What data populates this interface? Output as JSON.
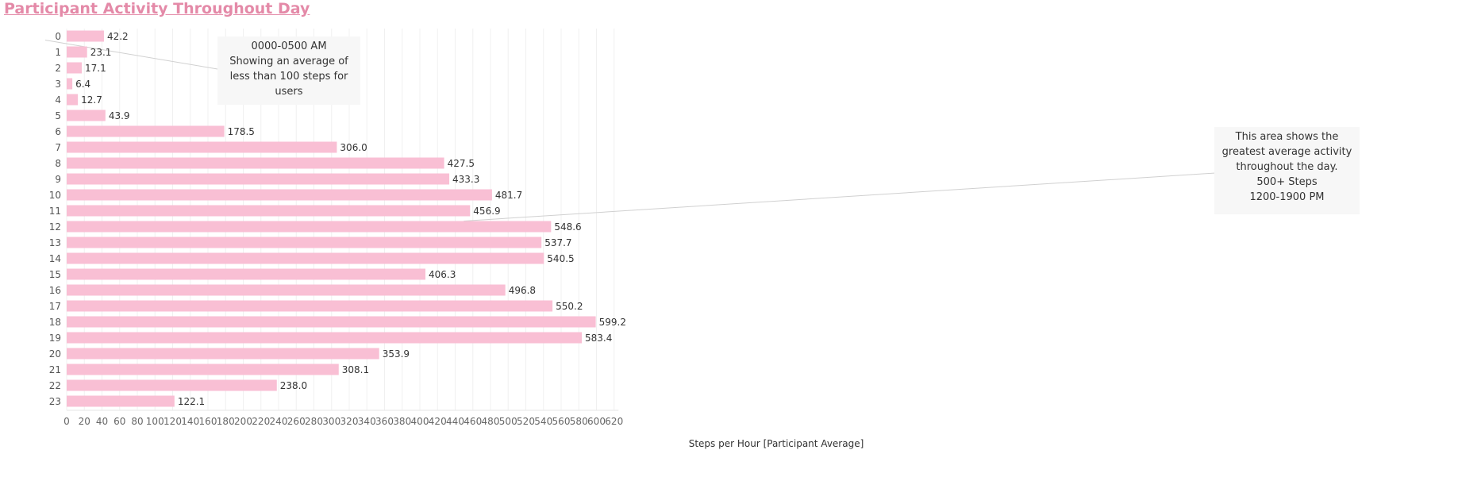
{
  "chart_data": {
    "type": "bar",
    "orientation": "horizontal",
    "title": "Participant Activity Throughout Day",
    "xlabel": "Steps per Hour [Participant Average]",
    "ylabel": "",
    "categories": [
      "0",
      "1",
      "2",
      "3",
      "4",
      "5",
      "6",
      "7",
      "8",
      "9",
      "10",
      "11",
      "12",
      "13",
      "14",
      "15",
      "16",
      "17",
      "18",
      "19",
      "20",
      "21",
      "22",
      "23"
    ],
    "values": [
      42.2,
      23.1,
      17.1,
      6.4,
      12.7,
      43.9,
      178.5,
      306.0,
      427.5,
      433.3,
      481.7,
      456.9,
      548.6,
      537.7,
      540.5,
      406.3,
      496.8,
      550.2,
      599.2,
      583.4,
      353.9,
      308.1,
      238.0,
      122.1
    ],
    "value_labels": [
      "42.2",
      "23.1",
      "17.1",
      "6.4",
      "12.7",
      "43.9",
      "178.5",
      "306.0",
      "427.5",
      "433.3",
      "481.7",
      "456.9",
      "548.6",
      "537.7",
      "540.5",
      "406.3",
      "496.8",
      "550.2",
      "599.2",
      "583.4",
      "353.9",
      "308.1",
      "238.0",
      "122.1"
    ],
    "xlim": [
      0,
      625
    ],
    "x_ticks": [
      0,
      20,
      40,
      60,
      80,
      100,
      120,
      140,
      160,
      180,
      200,
      220,
      240,
      260,
      280,
      300,
      320,
      340,
      360,
      380,
      400,
      420,
      440,
      460,
      480,
      500,
      520,
      540,
      560,
      580,
      600,
      620
    ],
    "grid": true,
    "bar_color": "#f9bfd4",
    "title_color": "#e48aa8",
    "annotations": [
      {
        "lines": [
          "0000-0500 AM",
          "Showing an average of",
          "less than 100 steps for",
          "users"
        ],
        "points_to_category": "0"
      },
      {
        "lines": [
          "This area shows the",
          "greatest average activity",
          "throughout the day.",
          "500+ Steps",
          "1200-1900 PM"
        ],
        "points_to_category": "12"
      }
    ]
  }
}
